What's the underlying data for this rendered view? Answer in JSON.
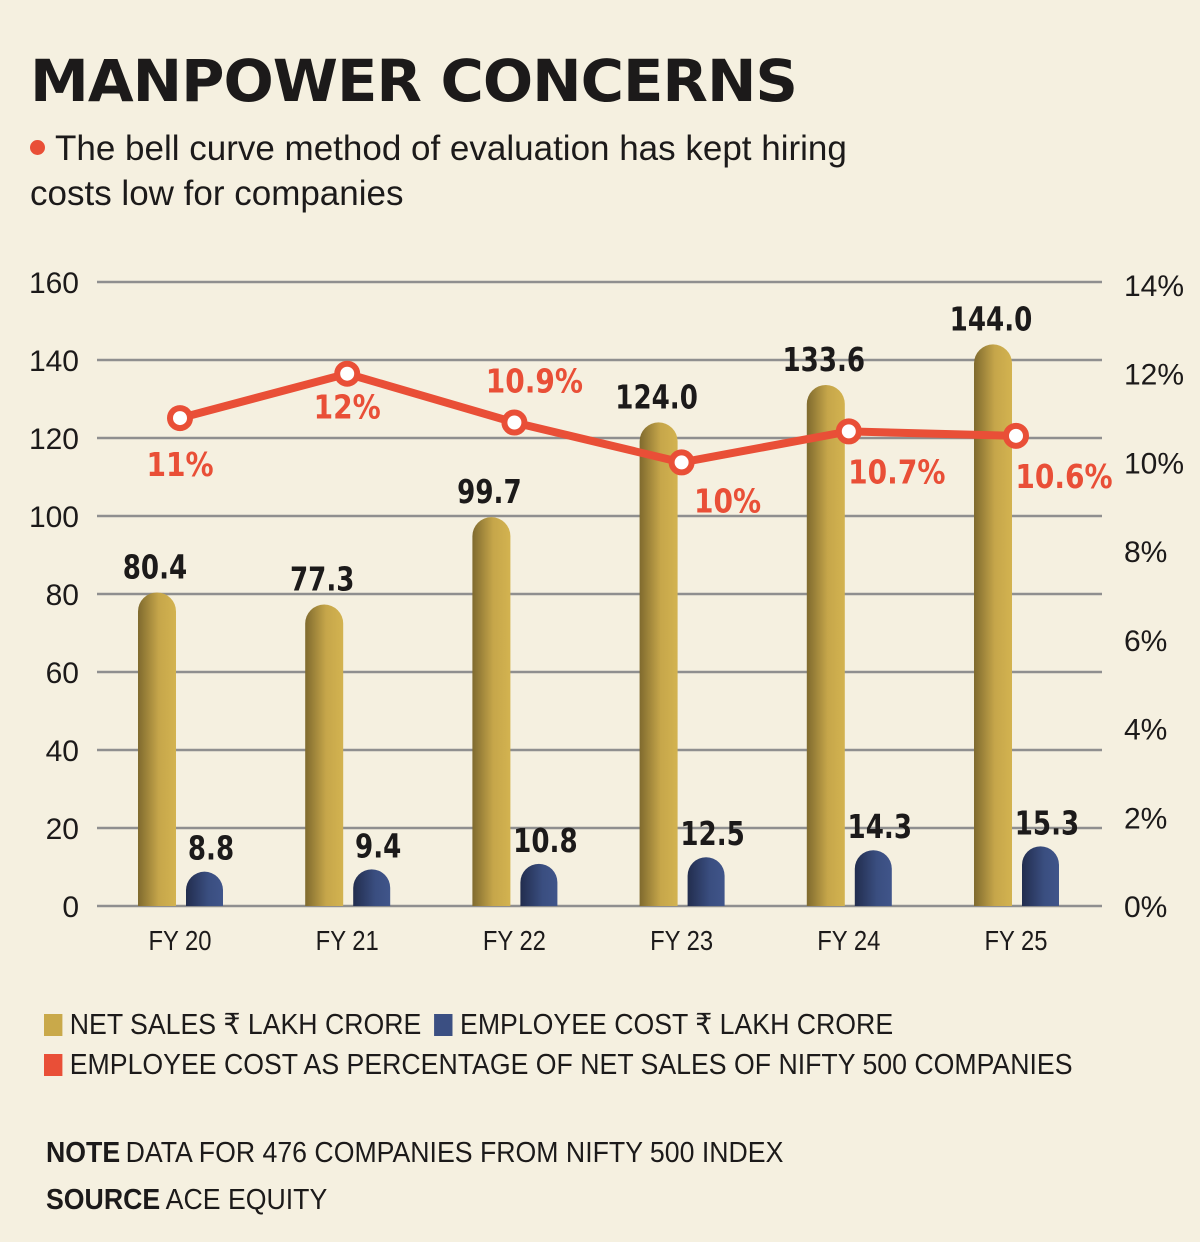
{
  "header": {
    "title": "MANPOWER CONCERNS",
    "subtitle": "The bell curve method of evaluation has kept hiring costs low for companies",
    "bullet_color": "#e94f37"
  },
  "colors": {
    "net_sales": "#c9a94a",
    "employee_cost": "#3b4f82",
    "percentage": "#e94f37",
    "grid": "#8f8f8f",
    "background": "#f5f0e0"
  },
  "chart_data": {
    "type": "bar",
    "title": "MANPOWER CONCERNS",
    "categories": [
      "FY 20",
      "FY 21",
      "FY 22",
      "FY 23",
      "FY 24",
      "FY 25"
    ],
    "series": [
      {
        "name": "NET SALES ₹ LAKH CRORE",
        "type": "bar",
        "axis": "left",
        "values": [
          80.4,
          77.3,
          99.7,
          124.0,
          133.6,
          144.0
        ],
        "labels": [
          "80.4",
          "77.3",
          "99.7",
          "124.0",
          "133.6",
          "144.0"
        ]
      },
      {
        "name": "EMPLOYEE COST ₹ LAKH CRORE",
        "type": "bar",
        "axis": "left",
        "values": [
          8.8,
          9.4,
          10.8,
          12.5,
          14.3,
          15.3
        ],
        "labels": [
          "8.8",
          "9.4",
          "10.8",
          "12.5",
          "14.3",
          "15.3"
        ]
      },
      {
        "name": "EMPLOYEE COST AS PERCENTAGE OF NET SALES OF NIFTY 500 COMPANIES",
        "type": "line",
        "axis": "right",
        "values": [
          11,
          12,
          10.9,
          10,
          10.7,
          10.6
        ],
        "labels": [
          "11%",
          "12%",
          "10.9%",
          "10%",
          "10.7%",
          "10.6%"
        ]
      }
    ],
    "left_axis": {
      "ylim": [
        0,
        160
      ],
      "ticks": [
        "0",
        "20",
        "40",
        "60",
        "80",
        "100",
        "120",
        "140",
        "160"
      ]
    },
    "right_axis": {
      "ylim": [
        0,
        14
      ],
      "ticks": [
        "0%",
        "2%",
        "4%",
        "6%",
        "8%",
        "10%",
        "12%",
        "14%"
      ]
    },
    "xlabel": "",
    "ylabel": "",
    "grid": true,
    "legend_position": "bottom"
  },
  "legend": [
    {
      "label": "NET SALES ₹ LAKH CRORE"
    },
    {
      "label": "EMPLOYEE COST ₹ LAKH CRORE"
    },
    {
      "label": "EMPLOYEE COST AS PERCENTAGE OF NET SALES OF NIFTY 500 COMPANIES"
    }
  ],
  "notes": {
    "note_label": "NOTE",
    "note_text": "DATA FOR 476 COMPANIES FROM NIFTY 500 INDEX",
    "source_label": "SOURCE",
    "source_text": "ACE EQUITY"
  }
}
